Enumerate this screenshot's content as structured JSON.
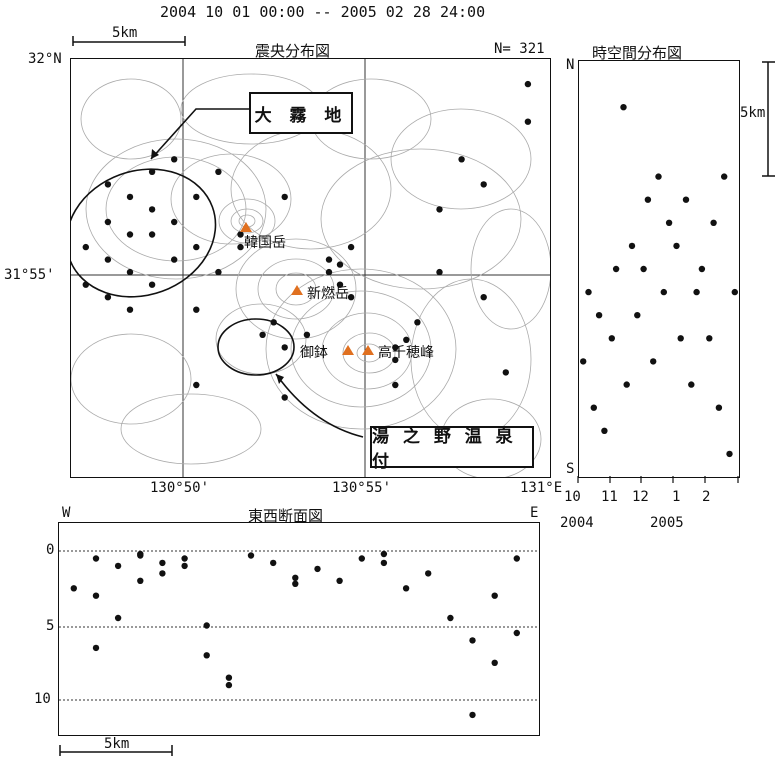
{
  "header": {
    "period": "2004 10 01 00:00 -- 2005 02 28 24:00"
  },
  "epicenter_map": {
    "title": "震央分布図",
    "count": "N= 321",
    "scale_label": "5km",
    "lat_labels": [
      "32°N",
      "31°55'"
    ],
    "lon_labels": [
      "130°50'",
      "130°55'",
      "131°E"
    ],
    "callouts": [
      "大 霧 地",
      "湯 之 野 温 泉 付"
    ],
    "peaks": [
      "韓国岳",
      "新燃岳",
      "御鉢",
      "高千穂峰"
    ],
    "peak_color": "#e07020"
  },
  "spacetime": {
    "title": "時空間分布図",
    "axis_n": "N",
    "axis_s": "S",
    "scale_label": "5km",
    "month_ticks": [
      "10",
      "11",
      "12",
      "1",
      "2"
    ],
    "year_labels": [
      "2004",
      "2005"
    ]
  },
  "ew_section": {
    "title": "東西断面図",
    "axis_w": "W",
    "axis_e": "E",
    "depth_ticks": [
      "0",
      "5",
      "10"
    ],
    "scale_label": "5km"
  },
  "chart_data": [
    {
      "type": "scatter",
      "title": "震央分布図",
      "xlabel": "",
      "ylabel": "",
      "xlim": [
        130.7833,
        131.0
      ],
      "ylim": [
        31.8333,
        32.0
      ],
      "x": [
        130.79,
        130.8,
        130.8,
        130.81,
        130.81,
        130.82,
        130.82,
        130.83,
        130.83,
        130.84,
        130.8,
        130.81,
        130.82,
        130.79,
        130.84,
        130.85,
        130.83,
        130.82,
        130.81,
        130.8,
        130.86,
        130.85,
        130.84,
        130.88,
        130.9,
        130.9,
        130.905,
        130.91,
        130.905,
        130.89,
        130.875,
        130.88,
        130.87,
        130.93,
        130.93,
        130.935,
        130.94,
        130.93,
        130.96,
        130.97,
        130.99,
        130.97,
        130.98,
        130.95,
        130.88,
        130.86,
        130.84,
        130.91,
        130.95,
        130.99
      ],
      "y": [
        31.925,
        31.92,
        31.935,
        31.93,
        31.915,
        31.93,
        31.94,
        31.935,
        31.92,
        31.925,
        31.905,
        31.9,
        31.91,
        31.91,
        31.945,
        31.955,
        31.96,
        31.955,
        31.945,
        31.95,
        31.93,
        31.915,
        31.9,
        31.945,
        31.92,
        31.915,
        31.918,
        31.925,
        31.91,
        31.89,
        31.895,
        31.885,
        31.89,
        31.885,
        31.88,
        31.888,
        31.895,
        31.87,
        31.96,
        31.95,
        31.975,
        31.905,
        31.875,
        31.915,
        31.865,
        31.925,
        31.87,
        31.905,
        31.94,
        31.99
      ]
    },
    {
      "type": "scatter",
      "title": "時空間分布図",
      "xlabel": "",
      "ylabel": "",
      "x": [
        "2004-10-05",
        "2004-10-10",
        "2004-10-15",
        "2004-10-20",
        "2004-10-25",
        "2004-11-01",
        "2004-11-05",
        "2004-11-12",
        "2004-11-15",
        "2004-11-20",
        "2004-11-25",
        "2004-12-01",
        "2004-12-05",
        "2004-12-10",
        "2004-12-15",
        "2004-12-20",
        "2004-12-25",
        "2005-01-01",
        "2005-01-05",
        "2005-01-10",
        "2005-01-15",
        "2005-01-20",
        "2005-01-25",
        "2005-02-01",
        "2005-02-05",
        "2005-02-10",
        "2005-02-15",
        "2005-02-20",
        "2005-02-25"
      ],
      "y": [
        5,
        8,
        3,
        7,
        2,
        6,
        9,
        16,
        4,
        10,
        7,
        9,
        12,
        5,
        13,
        8,
        11,
        10,
        6,
        12,
        4,
        8,
        9,
        6,
        11,
        3,
        13,
        1,
        8
      ]
    },
    {
      "type": "scatter",
      "title": "東西断面図",
      "xlabel": "",
      "ylabel": "",
      "ylim": [
        0,
        11
      ],
      "x": [
        130.79,
        130.8,
        130.8,
        130.81,
        130.81,
        130.82,
        130.82,
        130.83,
        130.83,
        130.84,
        130.85,
        130.86,
        130.87,
        130.88,
        130.89,
        130.89,
        130.9,
        130.91,
        130.92,
        130.93,
        130.93,
        130.94,
        130.95,
        130.96,
        130.97,
        130.98,
        130.99,
        130.8,
        130.82,
        130.84,
        130.85,
        130.86,
        130.97,
        130.98,
        130.99
      ],
      "y": [
        2.5,
        0.5,
        3.0,
        1.0,
        4.5,
        0.2,
        2.0,
        1.5,
        0.8,
        0.5,
        5.0,
        8.5,
        0.3,
        0.8,
        2.2,
        1.8,
        1.2,
        2.0,
        0.5,
        0.2,
        0.8,
        2.5,
        1.5,
        4.5,
        6.0,
        7.5,
        5.5,
        6.5,
        0.3,
        1.0,
        7.0,
        9.0,
        11.0,
        3.0,
        0.5
      ]
    }
  ]
}
